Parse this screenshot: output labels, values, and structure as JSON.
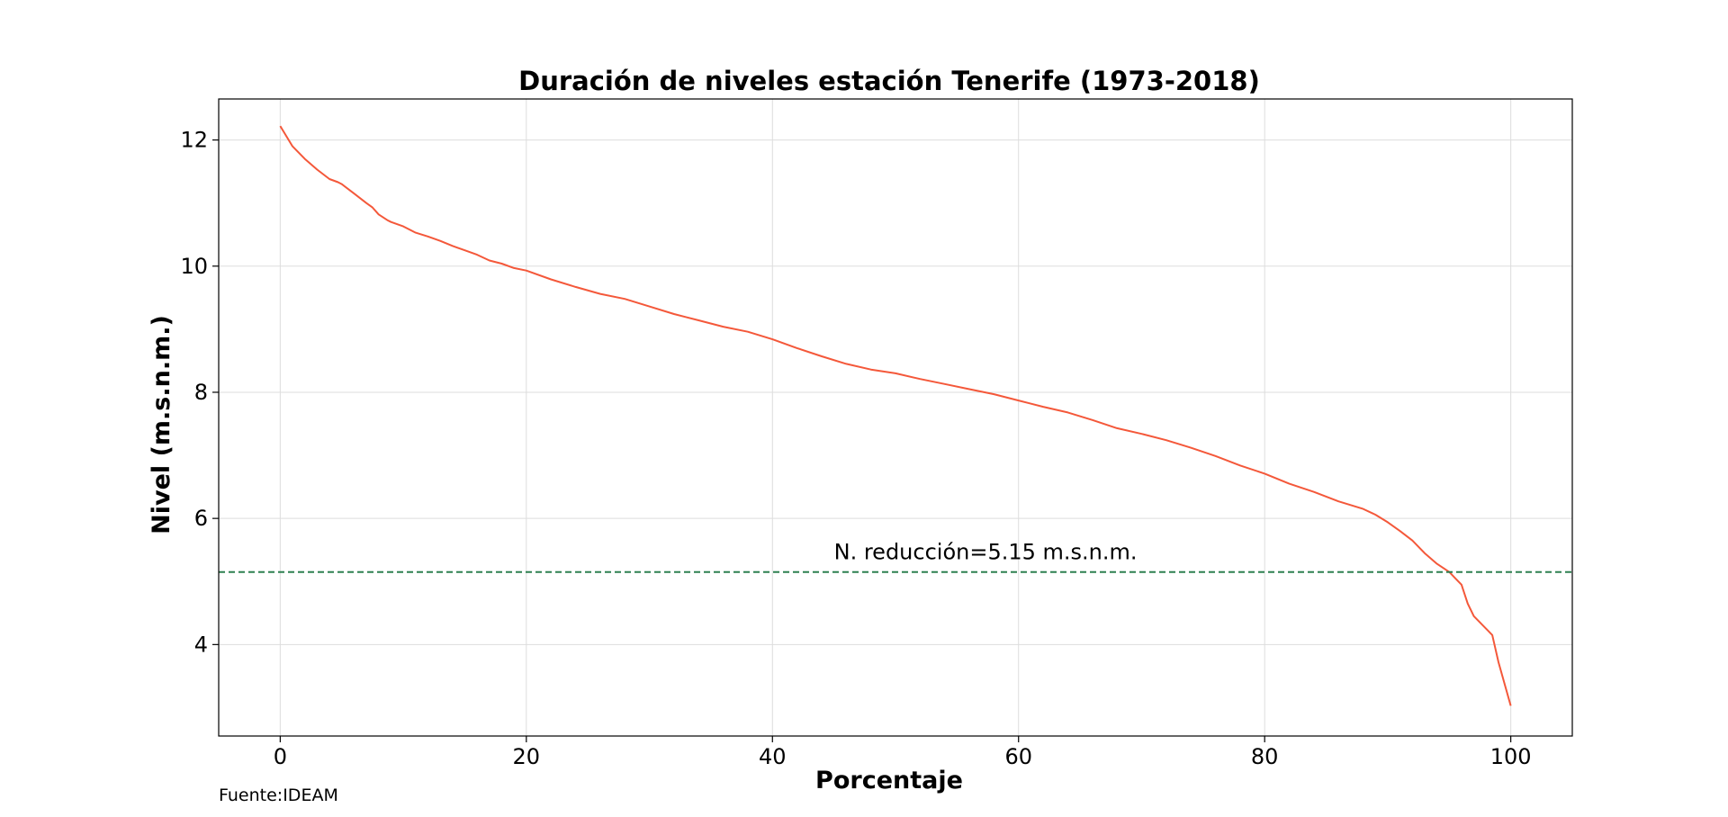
{
  "chart_data": {
    "type": "line",
    "title": "Duración de niveles estación Tenerife (1973-2018)",
    "xlabel": "Porcentaje",
    "ylabel": "Nivel (m.s.n.m.)",
    "xlim": [
      -5,
      105
    ],
    "ylim": [
      2.55,
      12.65
    ],
    "x_ticks": [
      0,
      20,
      40,
      60,
      80,
      100
    ],
    "y_ticks": [
      4,
      6,
      8,
      10,
      12
    ],
    "grid": true,
    "legend": "none",
    "series": [
      {
        "color": "#f4583a",
        "x": [
          0,
          1,
          2,
          3,
          4,
          4.7,
          5,
          6,
          7,
          7.5,
          8,
          8.7,
          9,
          10,
          11,
          12,
          13,
          14,
          15,
          16,
          17,
          18,
          19,
          20,
          22,
          24,
          26,
          28,
          30,
          32,
          34,
          36,
          38,
          40,
          42,
          44,
          46,
          48,
          50,
          52,
          54,
          56,
          58,
          60,
          62,
          64,
          66,
          68,
          70,
          72,
          74,
          76,
          78,
          80,
          82,
          84,
          86,
          88,
          89,
          90,
          91,
          92,
          93,
          94,
          95,
          95.5,
          96,
          96.5,
          97,
          98,
          98.5,
          99,
          100
        ],
        "values": [
          12.22,
          11.9,
          11.7,
          11.53,
          11.38,
          11.33,
          11.3,
          11.15,
          11.0,
          10.93,
          10.82,
          10.73,
          10.7,
          10.63,
          10.53,
          10.47,
          10.4,
          10.32,
          10.25,
          10.18,
          10.09,
          10.04,
          9.97,
          9.93,
          9.79,
          9.67,
          9.56,
          9.48,
          9.36,
          9.24,
          9.14,
          9.04,
          8.96,
          8.84,
          8.7,
          8.57,
          8.45,
          8.36,
          8.3,
          8.21,
          8.13,
          8.05,
          7.97,
          7.87,
          7.77,
          7.68,
          7.56,
          7.43,
          7.34,
          7.24,
          7.12,
          6.99,
          6.84,
          6.71,
          6.55,
          6.42,
          6.27,
          6.15,
          6.06,
          5.94,
          5.8,
          5.65,
          5.45,
          5.28,
          5.15,
          5.05,
          4.95,
          4.65,
          4.45,
          4.25,
          4.15,
          3.72,
          3.03
        ]
      }
    ],
    "hline": {
      "y": 5.15,
      "color": "#2e8050",
      "style": "dashed",
      "label": "N. reducción=5.15 m.s.n.m.",
      "label_x": 45
    },
    "source": "Fuente:IDEAM"
  }
}
